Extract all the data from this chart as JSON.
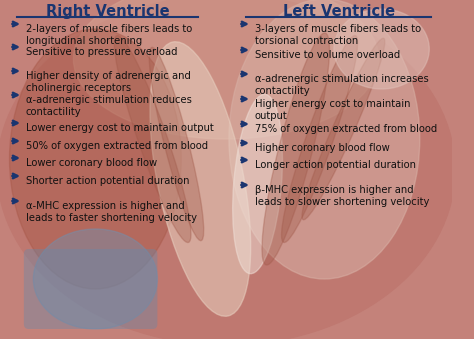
{
  "title_right": "Right Ventricle",
  "title_left": "Left Ventricle",
  "right_items": [
    "2-layers of muscle fibers leads to\nlongitudinal shortening",
    "Sensitive to pressure overload",
    "Higher density of adrenergic and\ncholinergic receptors",
    "α-adrenergic stimulation reduces\ncontactility",
    "Lower energy cost to maintain output",
    "50% of oxygen extracted from blood",
    "Lower coronary blood flow",
    "Shorter action potential duration",
    "α-MHC expression is higher and\nleads to faster shortening velocity"
  ],
  "left_items": [
    "3-layers of muscle fibers leads to\ntorsional contraction",
    "Sensitive to volume overload",
    "α-adrenergic stimulation increases\ncontactility",
    "Higher energy cost to maintain\noutput",
    "75% of oxygen extracted from blood",
    "Higher coronary blood flow",
    "Longer action potential duration",
    "β-MHC expression is higher and\nleads to slower shortening velocity"
  ],
  "arrow_color": "#1a3570",
  "title_color": "#1a3570",
  "text_color": "#111111",
  "underline_color": "#1a3570",
  "bg_base": "#c4827a",
  "bg_light": "#d8a090",
  "bg_dark": "#a05545",
  "bg_highlight": "#c8b0a8",
  "septum_color": "#b07068",
  "title_fontsize": 10.5,
  "item_fontsize": 7.2
}
